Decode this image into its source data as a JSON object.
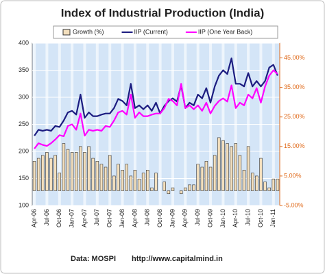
{
  "chart_data": {
    "type": "bar-line",
    "title": "Index of Industrial Production (India)",
    "categories": [
      "Apr-06",
      null,
      null,
      "Jul-06",
      null,
      null,
      "Oct-06",
      null,
      null,
      "Jan-07",
      null,
      null,
      "Apr-07",
      null,
      null,
      "Jul-07",
      null,
      null,
      "Oct-07",
      null,
      null,
      "Jan-08",
      null,
      null,
      "Apr-08",
      null,
      null,
      "Jul-08",
      null,
      null,
      "Oct-08",
      null,
      null,
      "Jan-09",
      null,
      null,
      "Apr-09",
      null,
      null,
      "Jul-09",
      null,
      null,
      "Oct-09",
      null,
      null,
      "Jan-10",
      null,
      null,
      "Apr-10",
      null,
      null,
      "Jul-10",
      null,
      null,
      "Oct-10",
      null,
      null,
      "Jan-11",
      null
    ],
    "series": [
      {
        "name": "Growth (%)",
        "kind": "bar",
        "axis": "y2",
        "color": "#f3dfbd",
        "values": [
          10,
          11,
          12,
          13,
          11,
          12,
          6,
          16,
          14,
          13,
          13,
          15,
          13,
          15,
          11,
          10,
          9,
          8,
          12,
          5,
          9,
          7,
          9,
          5,
          7,
          4,
          6,
          7,
          1,
          6,
          0,
          3,
          -1,
          1,
          0,
          -1,
          1,
          2,
          2,
          9,
          8,
          10,
          8,
          12,
          18,
          17,
          16,
          15,
          16,
          12,
          7,
          15,
          6,
          5,
          11,
          3,
          1,
          4,
          4
        ]
      },
      {
        "name": "IIP (Current)",
        "kind": "line",
        "color": "#1c1c80",
        "values": [
          229,
          240,
          238,
          240,
          238,
          247,
          245,
          257,
          272,
          275,
          268,
          305,
          262,
          272,
          265,
          265,
          268,
          270,
          270,
          280,
          297,
          293,
          285,
          325,
          280,
          285,
          278,
          285,
          275,
          290,
          270,
          284,
          293,
          298,
          292,
          322,
          280,
          290,
          285,
          305,
          298,
          317,
          290,
          320,
          340,
          350,
          343,
          372,
          325,
          325,
          320,
          345,
          320,
          330,
          320,
          330,
          355,
          360,
          340
        ]
      },
      {
        "name": "IIP (One Year Back)",
        "kind": "line",
        "color": "#ff00ff",
        "values": [
          205,
          215,
          212,
          210,
          215,
          222,
          230,
          228,
          247,
          250,
          240,
          270,
          229,
          240,
          238,
          240,
          238,
          247,
          245,
          257,
          272,
          275,
          268,
          305,
          262,
          272,
          265,
          265,
          268,
          270,
          270,
          280,
          297,
          293,
          285,
          325,
          280,
          285,
          278,
          285,
          275,
          290,
          270,
          284,
          293,
          298,
          292,
          322,
          280,
          290,
          285,
          305,
          298,
          317,
          290,
          320,
          340,
          350,
          343
        ]
      }
    ],
    "ylim": [
      100,
      400
    ],
    "yticks": [
      100,
      150,
      200,
      250,
      300,
      350,
      400
    ],
    "y2lim": [
      -5,
      50
    ],
    "y2ticks": [
      {
        "value": -5,
        "label": "-5.00%"
      },
      {
        "value": 5,
        "label": "5.00%"
      },
      {
        "value": 15,
        "label": "15.00%"
      },
      {
        "value": 25,
        "label": "25.00%"
      },
      {
        "value": 35,
        "label": "35.00%"
      },
      {
        "value": 45,
        "label": "45.00%"
      }
    ],
    "grid": true,
    "footer": [
      "Data: MOSPI",
      "http://www.capitalmind.in"
    ]
  }
}
